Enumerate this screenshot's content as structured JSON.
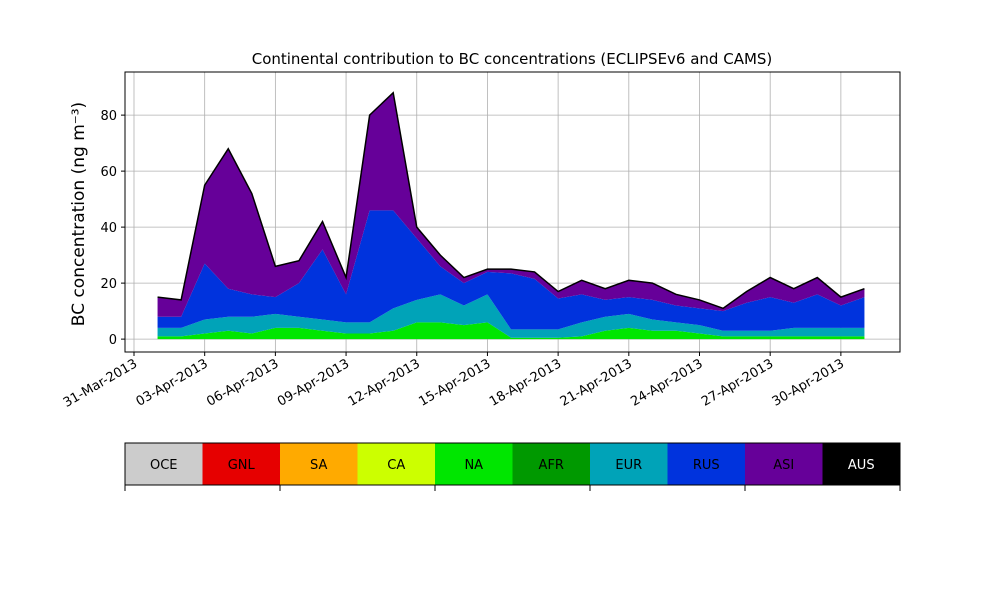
{
  "chart_data": {
    "type": "stacked_area",
    "title": "Continental contribution to BC concentrations (ECLIPSEv6 and CAMS)",
    "ylabel": "BC concentration (ng m⁻³)",
    "x": [
      "2013-04-01",
      "2013-04-02",
      "2013-04-03",
      "2013-04-04",
      "2013-04-05",
      "2013-04-06",
      "2013-04-07",
      "2013-04-08",
      "2013-04-09",
      "2013-04-10",
      "2013-04-11",
      "2013-04-12",
      "2013-04-13",
      "2013-04-14",
      "2013-04-15",
      "2013-04-16",
      "2013-04-17",
      "2013-04-18",
      "2013-04-19",
      "2013-04-20",
      "2013-04-21",
      "2013-04-22",
      "2013-04-23",
      "2013-04-24",
      "2013-04-25",
      "2013-04-26",
      "2013-04-27",
      "2013-04-28",
      "2013-04-29",
      "2013-04-30",
      "2013-05-01"
    ],
    "series": [
      {
        "name": "OCE",
        "color": "#cccccc",
        "values": [
          0,
          0,
          0,
          0,
          0,
          0,
          0,
          0,
          0,
          0,
          0,
          0,
          0,
          0,
          0,
          0,
          0,
          0,
          0,
          0,
          0,
          0,
          0,
          0,
          0,
          0,
          0,
          0,
          0,
          0,
          0
        ]
      },
      {
        "name": "GNL",
        "color": "#e60000",
        "values": [
          0,
          0,
          0,
          0,
          0,
          0,
          0,
          0,
          0,
          0,
          0,
          0,
          0,
          0,
          0,
          0,
          0,
          0,
          0,
          0,
          0,
          0,
          0,
          0,
          0,
          0,
          0,
          0,
          0,
          0,
          0
        ]
      },
      {
        "name": "SA",
        "color": "#ffaa00",
        "values": [
          0,
          0,
          0,
          0,
          0,
          0,
          0,
          0,
          0,
          0,
          0,
          0,
          0,
          0,
          0,
          0,
          0,
          0,
          0,
          0,
          0,
          0,
          0,
          0,
          0,
          0,
          0,
          0,
          0,
          0,
          0
        ]
      },
      {
        "name": "CA",
        "color": "#ccff00",
        "values": [
          0,
          0,
          0,
          0,
          0,
          0,
          0,
          0,
          0,
          0,
          0,
          0,
          0,
          0,
          0,
          0,
          0,
          0,
          0,
          0,
          0,
          0,
          0,
          0,
          0,
          0,
          0,
          0,
          0,
          0,
          0
        ]
      },
      {
        "name": "NA",
        "color": "#00e600",
        "values": [
          1,
          1,
          2,
          3,
          2,
          4,
          4,
          3,
          2,
          2,
          3,
          6,
          6,
          5,
          6,
          0.5,
          0.5,
          0.5,
          1,
          3,
          4,
          3,
          3,
          2,
          1,
          1,
          1,
          1,
          1,
          1,
          1
        ]
      },
      {
        "name": "AFR",
        "color": "#009900",
        "values": [
          0,
          0,
          0,
          0,
          0,
          0,
          0,
          0,
          0,
          0,
          0,
          0,
          0,
          0,
          0,
          0,
          0,
          0,
          0,
          0,
          0,
          0,
          0,
          0,
          0,
          0,
          0,
          0,
          0,
          0,
          0
        ]
      },
      {
        "name": "EUR",
        "color": "#00a3b8",
        "values": [
          3,
          3,
          5,
          5,
          6,
          5,
          4,
          4,
          4,
          4,
          8,
          8,
          10,
          7,
          10,
          3,
          3,
          3,
          5,
          5,
          5,
          4,
          3,
          3,
          2,
          2,
          2,
          3,
          3,
          3,
          3
        ]
      },
      {
        "name": "RUS",
        "color": "#0033dd",
        "values": [
          4,
          4,
          20,
          10,
          8,
          6,
          12,
          25,
          10,
          40,
          35,
          22,
          10,
          8,
          8,
          20,
          18,
          11,
          10,
          6,
          6,
          7,
          6,
          6,
          7,
          10,
          12,
          9,
          12,
          8,
          11
        ]
      },
      {
        "name": "ASI",
        "color": "#660099",
        "values": [
          7,
          6,
          28,
          50,
          36,
          11,
          8,
          10,
          6,
          34,
          42,
          4,
          4,
          2,
          1,
          1.5,
          2.5,
          2.5,
          5,
          4,
          6,
          6,
          4,
          3,
          1,
          4,
          7,
          5,
          6,
          3,
          3
        ]
      },
      {
        "name": "AUS",
        "color": "#000000",
        "values": [
          0,
          0,
          0,
          0,
          0,
          0,
          0,
          0,
          0,
          0,
          0,
          0,
          0,
          0,
          0,
          0,
          0,
          0,
          0,
          0,
          0,
          0,
          0,
          0,
          0,
          0,
          0,
          0,
          0,
          0,
          0
        ]
      }
    ],
    "xlim": [
      "2013-03-31",
      "2013-05-02"
    ],
    "xticks": [
      {
        "value": "2013-03-31",
        "label": "31-Mar-2013"
      },
      {
        "value": "2013-04-03",
        "label": "03-Apr-2013"
      },
      {
        "value": "2013-04-06",
        "label": "06-Apr-2013"
      },
      {
        "value": "2013-04-09",
        "label": "09-Apr-2013"
      },
      {
        "value": "2013-04-12",
        "label": "12-Apr-2013"
      },
      {
        "value": "2013-04-15",
        "label": "15-Apr-2013"
      },
      {
        "value": "2013-04-18",
        "label": "18-Apr-2013"
      },
      {
        "value": "2013-04-21",
        "label": "21-Apr-2013"
      },
      {
        "value": "2013-04-24",
        "label": "24-Apr-2013"
      },
      {
        "value": "2013-04-27",
        "label": "27-Apr-2013"
      },
      {
        "value": "2013-04-30",
        "label": "30-Apr-2013"
      }
    ],
    "ylim": [
      -4.6,
      95.4
    ],
    "yticks": [
      0,
      20,
      40,
      60,
      80
    ],
    "grid": true
  }
}
